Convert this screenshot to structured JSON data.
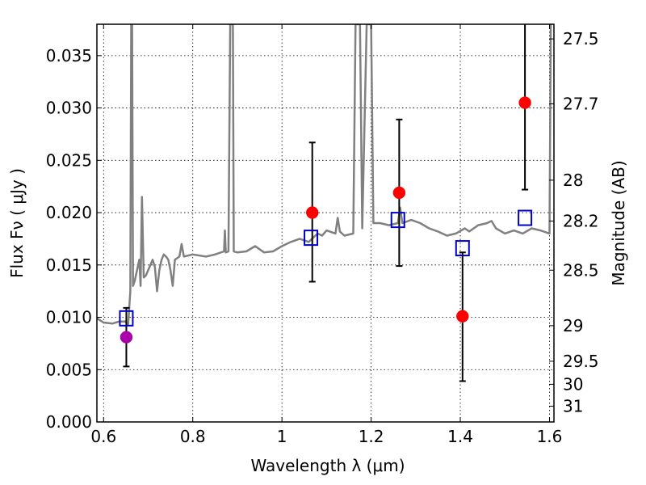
{
  "chart_data": {
    "type": "scatter",
    "xlabel": "Wavelength  λ (μm)",
    "ylabel": "Flux  Fν  ( μJy )",
    "ylabel_right": "Magnitude (AB)",
    "xlim": [
      0.585,
      1.61
    ],
    "ylim": [
      0.0,
      0.038
    ],
    "grid": true,
    "x_ticks": [
      {
        "value": 0.6,
        "label": "0.6"
      },
      {
        "value": 0.8,
        "label": "0.8"
      },
      {
        "value": 1.0,
        "label": "1"
      },
      {
        "value": 1.2,
        "label": "1.2"
      },
      {
        "value": 1.4,
        "label": "1.4"
      },
      {
        "value": 1.6,
        "label": "1.6"
      }
    ],
    "y_ticks": [
      {
        "value": 0.0,
        "label": "0.000"
      },
      {
        "value": 0.005,
        "label": "0.005"
      },
      {
        "value": 0.01,
        "label": "0.010"
      },
      {
        "value": 0.015,
        "label": "0.015"
      },
      {
        "value": 0.02,
        "label": "0.020"
      },
      {
        "value": 0.025,
        "label": "0.025"
      },
      {
        "value": 0.03,
        "label": "0.030"
      },
      {
        "value": 0.035,
        "label": "0.035"
      }
    ],
    "mag_ticks": [
      {
        "label": "27.5",
        "flux": 0.0366
      },
      {
        "label": "27.7",
        "flux": 0.0304
      },
      {
        "label": "28",
        "flux": 0.0231
      },
      {
        "label": "28.2",
        "flux": 0.0192
      },
      {
        "label": "28.5",
        "flux": 0.0145
      },
      {
        "label": "29",
        "flux": 0.0092
      },
      {
        "label": "29.5",
        "flux": 0.0058
      },
      {
        "label": "30",
        "flux": 0.0036
      },
      {
        "label": "31",
        "flux": 0.0015
      }
    ],
    "series": [
      {
        "color": "#808080",
        "kind": "line",
        "points": [
          [
            0.585,
            0.0099
          ],
          [
            0.6,
            0.0095
          ],
          [
            0.62,
            0.0094
          ],
          [
            0.635,
            0.0096
          ],
          [
            0.648,
            0.0096
          ],
          [
            0.655,
            0.0093
          ],
          [
            0.66,
            0.0125
          ],
          [
            0.662,
            0.038
          ],
          [
            0.664,
            0.038
          ],
          [
            0.666,
            0.013
          ],
          [
            0.67,
            0.0135
          ],
          [
            0.675,
            0.0145
          ],
          [
            0.68,
            0.0155
          ],
          [
            0.683,
            0.013
          ],
          [
            0.686,
            0.0215
          ],
          [
            0.69,
            0.0138
          ],
          [
            0.695,
            0.014
          ],
          [
            0.7,
            0.0145
          ],
          [
            0.705,
            0.015
          ],
          [
            0.71,
            0.0155
          ],
          [
            0.715,
            0.0148
          ],
          [
            0.72,
            0.0125
          ],
          [
            0.725,
            0.0145
          ],
          [
            0.73,
            0.0155
          ],
          [
            0.735,
            0.016
          ],
          [
            0.74,
            0.0158
          ],
          [
            0.745,
            0.0155
          ],
          [
            0.75,
            0.0145
          ],
          [
            0.755,
            0.013
          ],
          [
            0.76,
            0.0155
          ],
          [
            0.77,
            0.0158
          ],
          [
            0.775,
            0.017
          ],
          [
            0.78,
            0.0158
          ],
          [
            0.8,
            0.016
          ],
          [
            0.83,
            0.0158
          ],
          [
            0.85,
            0.016
          ],
          [
            0.87,
            0.0163
          ],
          [
            0.872,
            0.0183
          ],
          [
            0.874,
            0.0162
          ],
          [
            0.88,
            0.0163
          ],
          [
            0.884,
            0.038
          ],
          [
            0.89,
            0.038
          ],
          [
            0.892,
            0.0163
          ],
          [
            0.9,
            0.0162
          ],
          [
            0.92,
            0.0163
          ],
          [
            0.94,
            0.0168
          ],
          [
            0.96,
            0.0162
          ],
          [
            0.98,
            0.0163
          ],
          [
            1.0,
            0.0168
          ],
          [
            1.02,
            0.0172
          ],
          [
            1.04,
            0.0175
          ],
          [
            1.06,
            0.0172
          ],
          [
            1.08,
            0.018
          ],
          [
            1.09,
            0.0178
          ],
          [
            1.1,
            0.0183
          ],
          [
            1.12,
            0.018
          ],
          [
            1.125,
            0.0195
          ],
          [
            1.13,
            0.0182
          ],
          [
            1.14,
            0.0178
          ],
          [
            1.16,
            0.018
          ],
          [
            1.165,
            0.038
          ],
          [
            1.175,
            0.038
          ],
          [
            1.18,
            0.0185
          ],
          [
            1.19,
            0.038
          ],
          [
            1.2,
            0.038
          ],
          [
            1.205,
            0.019
          ],
          [
            1.22,
            0.019
          ],
          [
            1.24,
            0.0188
          ],
          [
            1.26,
            0.019
          ],
          [
            1.265,
            0.0205
          ],
          [
            1.27,
            0.019
          ],
          [
            1.29,
            0.0193
          ],
          [
            1.31,
            0.019
          ],
          [
            1.33,
            0.0185
          ],
          [
            1.35,
            0.0182
          ],
          [
            1.37,
            0.0178
          ],
          [
            1.39,
            0.018
          ],
          [
            1.41,
            0.0185
          ],
          [
            1.42,
            0.0182
          ],
          [
            1.44,
            0.0188
          ],
          [
            1.46,
            0.019
          ],
          [
            1.47,
            0.0192
          ],
          [
            1.48,
            0.0185
          ],
          [
            1.5,
            0.018
          ],
          [
            1.52,
            0.0183
          ],
          [
            1.54,
            0.018
          ],
          [
            1.56,
            0.0185
          ],
          [
            1.58,
            0.0183
          ],
          [
            1.6,
            0.018
          ],
          [
            1.603,
            0.038
          ]
        ]
      },
      {
        "color": "#0000cc",
        "kind": "open-square",
        "points": [
          [
            0.651,
            0.0099
          ],
          [
            1.065,
            0.0176
          ],
          [
            1.26,
            0.0193
          ],
          [
            1.405,
            0.0166
          ],
          [
            1.545,
            0.0195
          ]
        ]
      },
      {
        "color": "#ff0000",
        "kind": "filled-circle",
        "points": [
          [
            1.068,
            0.02
          ],
          [
            1.263,
            0.0219
          ],
          [
            1.405,
            0.0101
          ],
          [
            1.545,
            0.0305
          ]
        ]
      },
      {
        "color": "#aa00aa",
        "kind": "filled-circle",
        "points": [
          [
            0.651,
            0.0081
          ]
        ]
      }
    ],
    "error_bars": [
      {
        "x": 0.651,
        "low": 0.0053,
        "high": 0.0109
      },
      {
        "x": 1.068,
        "low": 0.0134,
        "high": 0.0267
      },
      {
        "x": 1.263,
        "low": 0.0149,
        "high": 0.0289
      },
      {
        "x": 1.405,
        "low": 0.0039,
        "high": 0.0162
      },
      {
        "x": 1.545,
        "low": 0.0222,
        "high": 0.0395
      }
    ]
  }
}
